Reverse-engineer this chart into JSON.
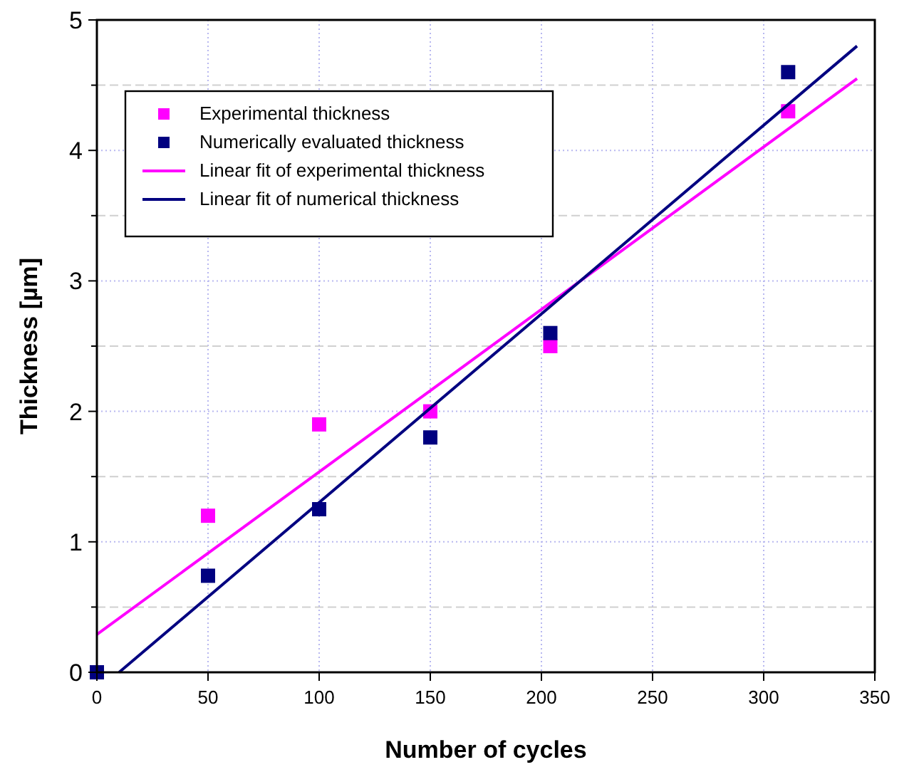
{
  "chart_data": {
    "type": "scatter",
    "xlabel": "Number of cycles",
    "ylabel": "Thickness [µm]",
    "xlim": [
      0,
      350
    ],
    "xticks": [
      0,
      50,
      100,
      150,
      200,
      250,
      300,
      350
    ],
    "ylim": [
      0,
      5
    ],
    "yticks": [
      0,
      {
        "value": 0.5,
        "label": null
      },
      1,
      {
        "value": 1.5,
        "label": null
      },
      2,
      {
        "value": 2.5,
        "label": null
      },
      3,
      {
        "value": 3.5,
        "label": null
      },
      4,
      {
        "value": 4.5,
        "label": null
      },
      5
    ],
    "grid": true,
    "legend": "top left",
    "marker": "square",
    "series": [
      {
        "name": "Experimental thickness",
        "color": "#ff00ff",
        "x": [
          50,
          100,
          150,
          204,
          311
        ],
        "values": [
          1.2,
          1.9,
          2.0,
          2.5,
          4.3
        ]
      },
      {
        "name": "Numerically evaluated thickness",
        "color": "#000080",
        "x": [
          0,
          50,
          100,
          150,
          204,
          311
        ],
        "values": [
          0,
          0.74,
          1.25,
          1.8,
          2.6,
          4.6
        ]
      },
      {
        "name": "Linear fit of experimental thickness",
        "type": "line",
        "marker": "none",
        "color": "#ff00ff",
        "x": [
          0,
          342
        ],
        "values": [
          0.29,
          4.55
        ]
      },
      {
        "name": "Linear fit of numerical thickness",
        "type": "line",
        "marker": "none",
        "color": "#000080",
        "x": [
          10,
          342
        ],
        "values": [
          0,
          4.8
        ]
      }
    ]
  }
}
